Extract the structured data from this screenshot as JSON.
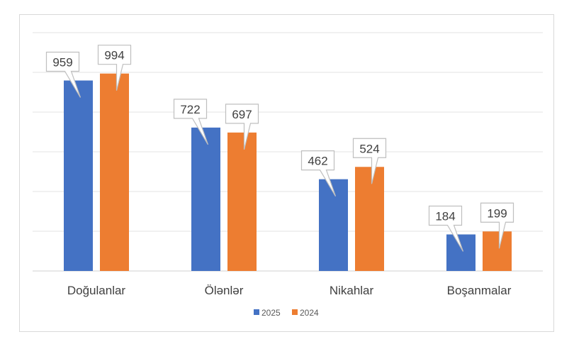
{
  "chart_data": {
    "type": "bar",
    "title": "",
    "xlabel": "",
    "ylabel": "",
    "categories": [
      "Doğulanlar",
      "Ölənlər",
      "Nikahlar",
      "Boşanmalar"
    ],
    "series": [
      {
        "name": "2025",
        "color": "#4472C4",
        "values": [
          959,
          722,
          462,
          184
        ]
      },
      {
        "name": "2024",
        "color": "#ED7D31",
        "values": [
          994,
          697,
          524,
          199
        ]
      }
    ],
    "ylim": [
      0,
      1200
    ],
    "ytick_step": 200,
    "grid": true,
    "legend_position": "bottom"
  }
}
